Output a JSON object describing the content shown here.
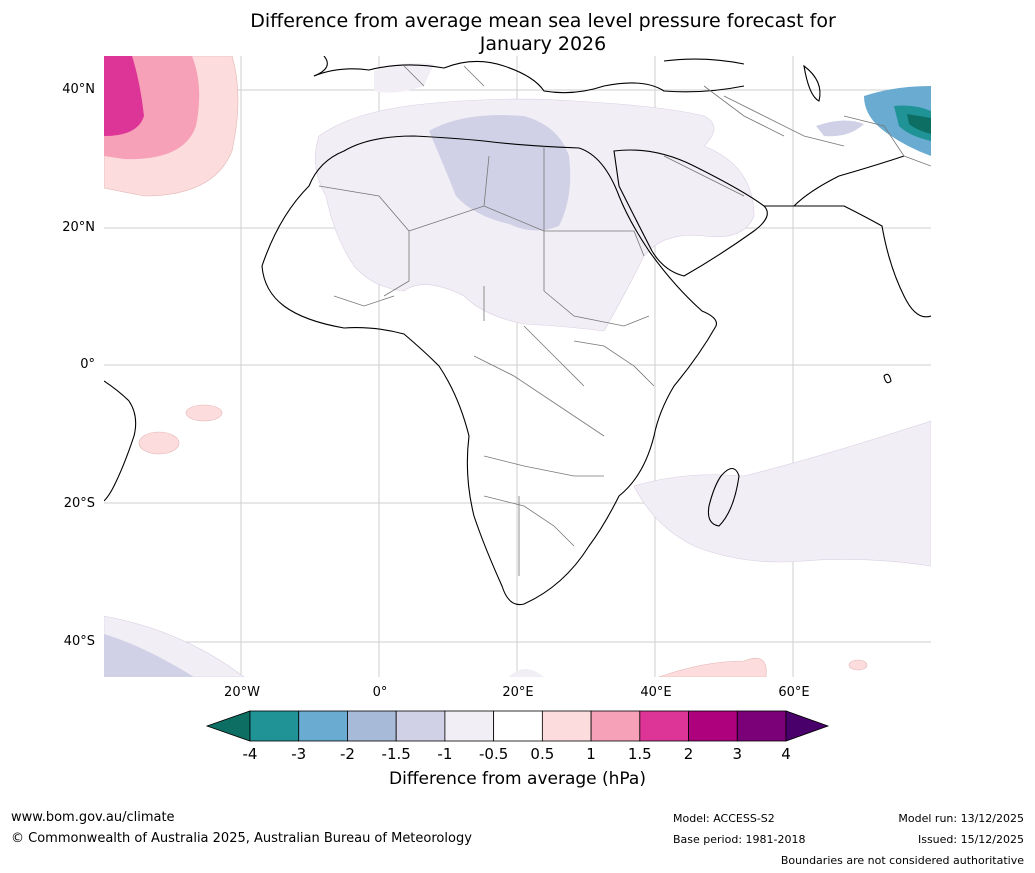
{
  "title_line1": "Difference from average mean sea level pressure forecast for",
  "title_line2": "January 2026",
  "lat_labels": [
    "40°N",
    "20°N",
    "0°",
    "20°S",
    "40°S"
  ],
  "lon_labels": [
    "20°W",
    "0°",
    "20°E",
    "40°E",
    "60°E"
  ],
  "colorbar": {
    "ticks": [
      "-4",
      "-3",
      "-2",
      "-1.5",
      "-1",
      "-0.5",
      "0.5",
      "1",
      "1.5",
      "2",
      "3",
      "4"
    ],
    "colors": [
      "#0d6e63",
      "#1f9396",
      "#6aabd1",
      "#a7bad8",
      "#d0d1e6",
      "#f2eef5",
      "#ffffff",
      "#fcdcdc",
      "#f7a1b8",
      "#dd3497",
      "#ae017e",
      "#7a0177",
      "#49006a"
    ],
    "label": "Difference from average (hPa)"
  },
  "footer": {
    "website": "www.bom.gov.au/climate",
    "copyright": "© Commonwealth of Australia 2025, Australian Bureau of Meteorology",
    "model": "Model: ACCESS-S2",
    "base_period": "Base period: 1981-2018",
    "model_run": "Model run: 13/12/2025",
    "issued": "Issued: 15/12/2025",
    "disclaimer": "Boundaries are not considered authoritative"
  }
}
